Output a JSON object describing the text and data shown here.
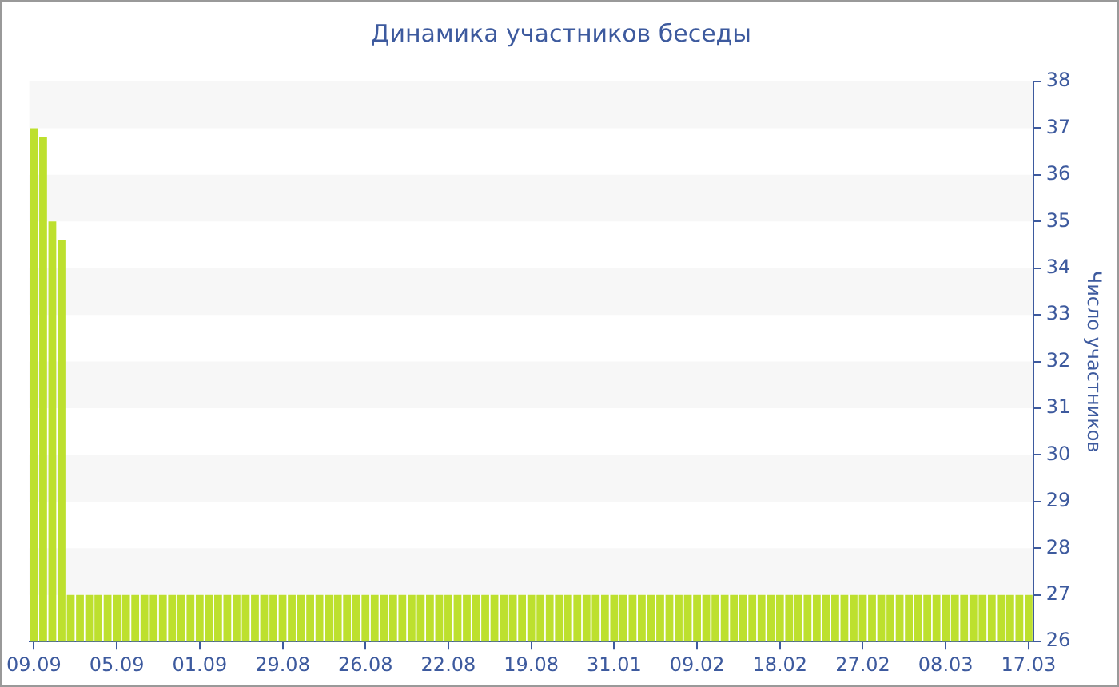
{
  "chart_data": {
    "type": "bar",
    "title": "Динамика участников беседы",
    "ylabel": "Число участников",
    "categories": [
      "09.09",
      null,
      null,
      null,
      null,
      null,
      null,
      null,
      null,
      "05.09",
      null,
      null,
      null,
      null,
      null,
      null,
      null,
      null,
      "01.09",
      null,
      null,
      null,
      null,
      null,
      null,
      null,
      null,
      "29.08",
      null,
      null,
      null,
      null,
      null,
      null,
      null,
      null,
      "26.08",
      null,
      null,
      null,
      null,
      null,
      null,
      null,
      null,
      "22.08",
      null,
      null,
      null,
      null,
      null,
      null,
      null,
      null,
      "19.08",
      null,
      null,
      null,
      null,
      null,
      null,
      null,
      null,
      "31.01",
      null,
      null,
      null,
      null,
      null,
      null,
      null,
      null,
      "09.02",
      null,
      null,
      null,
      null,
      null,
      null,
      null,
      null,
      "18.02",
      null,
      null,
      null,
      null,
      null,
      null,
      null,
      null,
      "27.02",
      null,
      null,
      null,
      null,
      null,
      null,
      null,
      null,
      "08.03",
      null,
      null,
      null,
      null,
      null,
      null,
      null,
      null,
      "17.03"
    ],
    "values": [
      37,
      36.8,
      35,
      34.6,
      27,
      27,
      27,
      27,
      27,
      27,
      27,
      27,
      27,
      27,
      27,
      27,
      27,
      27,
      27,
      27,
      27,
      27,
      27,
      27,
      27,
      27,
      27,
      27,
      27,
      27,
      27,
      27,
      27,
      27,
      27,
      27,
      27,
      27,
      27,
      27,
      27,
      27,
      27,
      27,
      27,
      27,
      27,
      27,
      27,
      27,
      27,
      27,
      27,
      27,
      27,
      27,
      27,
      27,
      27,
      27,
      27,
      27,
      27,
      27,
      27,
      27,
      27,
      27,
      27,
      27,
      27,
      27,
      27,
      27,
      27,
      27,
      27,
      27,
      27,
      27,
      27,
      27,
      27,
      27,
      27,
      27,
      27,
      27,
      27,
      27,
      27,
      27,
      27,
      27,
      27,
      27,
      27,
      27,
      27,
      27,
      27,
      27,
      27,
      27,
      27,
      27,
      27,
      27,
      27
    ],
    "color": "#bde02e",
    "ylim": [
      26,
      38
    ],
    "yticks": [
      26,
      27,
      28,
      29,
      30,
      31,
      32,
      33,
      34,
      35,
      36,
      37,
      38
    ],
    "bands": [
      {
        "axis": "y",
        "from": 37,
        "to": 38,
        "color": "#f7f7f7"
      },
      {
        "axis": "y",
        "from": 35,
        "to": 36,
        "color": "#f7f7f7"
      },
      {
        "axis": "y",
        "from": 33,
        "to": 34,
        "color": "#f7f7f7"
      },
      {
        "axis": "y",
        "from": 31,
        "to": 32,
        "color": "#f7f7f7"
      },
      {
        "axis": "y",
        "from": 29,
        "to": 30,
        "color": "#f7f7f7"
      },
      {
        "axis": "y",
        "from": 27,
        "to": 28,
        "color": "#f7f7f7"
      }
    ]
  }
}
